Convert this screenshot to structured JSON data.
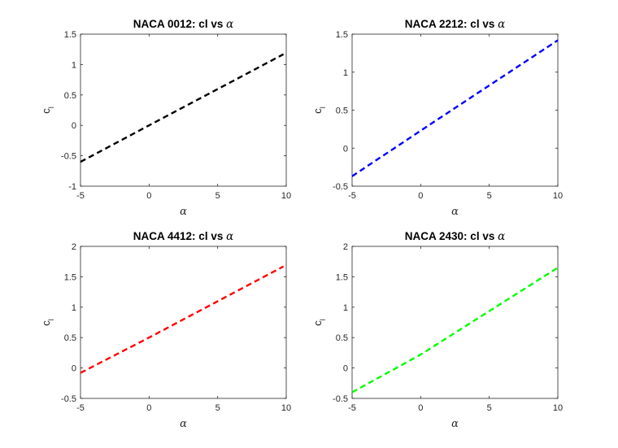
{
  "chart_data": [
    {
      "type": "line",
      "title": "NACA 0012: cl vs",
      "title_symbol": "α",
      "xlabel": "α",
      "ylabel": "c",
      "ylabel_sub": "l",
      "xlim": [
        -5,
        10
      ],
      "ylim": [
        -1,
        1.5
      ],
      "xticks": [
        -5,
        0,
        5,
        10
      ],
      "yticks": [
        -1,
        -0.5,
        0,
        0.5,
        1,
        1.5
      ],
      "xtick_labels": [
        "-5",
        "0",
        "5",
        "10"
      ],
      "ytick_labels": [
        "-1",
        "-0.5",
        "0",
        "0.5",
        "1",
        "1.5"
      ],
      "grid": false,
      "series": [
        {
          "x": [
            -5,
            0,
            9.8
          ],
          "y": [
            -0.6,
            0.0,
            1.17
          ],
          "color": "#000000",
          "style": "dashed"
        }
      ]
    },
    {
      "type": "line",
      "title": "NACA 2212: cl vs",
      "title_symbol": "α",
      "xlabel": "α",
      "ylabel": "c",
      "ylabel_sub": "l",
      "xlim": [
        -5,
        10
      ],
      "ylim": [
        -0.5,
        1.5
      ],
      "xticks": [
        -5,
        0,
        5,
        10
      ],
      "yticks": [
        -0.5,
        0,
        0.5,
        1,
        1.5
      ],
      "xtick_labels": [
        "-5",
        "0",
        "5",
        "10"
      ],
      "ytick_labels": [
        "-0.5",
        "0",
        "0.5",
        "1",
        "1.5"
      ],
      "grid": false,
      "series": [
        {
          "x": [
            -5,
            0,
            10
          ],
          "y": [
            -0.37,
            0.23,
            1.42
          ],
          "color": "#0000ff",
          "style": "dashed"
        }
      ]
    },
    {
      "type": "line",
      "title": "NACA 4412: cl vs",
      "title_symbol": "α",
      "xlabel": "α",
      "ylabel": "c",
      "ylabel_sub": "l",
      "xlim": [
        -5,
        10
      ],
      "ylim": [
        -0.5,
        2
      ],
      "xticks": [
        -5,
        0,
        5,
        10
      ],
      "yticks": [
        -0.5,
        0,
        0.5,
        1,
        1.5,
        2
      ],
      "xtick_labels": [
        "-5",
        "0",
        "5",
        "10"
      ],
      "ytick_labels": [
        "-0.5",
        "0",
        "0.5",
        "1",
        "1.5",
        "2"
      ],
      "grid": false,
      "series": [
        {
          "x": [
            -5,
            0,
            9.8
          ],
          "y": [
            -0.08,
            0.5,
            1.67
          ],
          "color": "#ff0000",
          "style": "dashed"
        }
      ]
    },
    {
      "type": "line",
      "title": "NACA 2430: cl vs",
      "title_symbol": "α",
      "xlabel": "α",
      "ylabel": "c",
      "ylabel_sub": "l",
      "xlim": [
        -5,
        10
      ],
      "ylim": [
        -0.5,
        2
      ],
      "xticks": [
        -5,
        0,
        5,
        10
      ],
      "yticks": [
        -0.5,
        0,
        0.5,
        1,
        1.5,
        2
      ],
      "xtick_labels": [
        "-5",
        "0",
        "5",
        "10"
      ],
      "ytick_labels": [
        "-0.5",
        "0",
        "0.5",
        "1",
        "1.5",
        "2"
      ],
      "grid": false,
      "series": [
        {
          "x": [
            -5,
            0,
            10
          ],
          "y": [
            -0.4,
            0.22,
            1.65
          ],
          "color": "#00ff00",
          "style": "dashed"
        }
      ]
    }
  ]
}
